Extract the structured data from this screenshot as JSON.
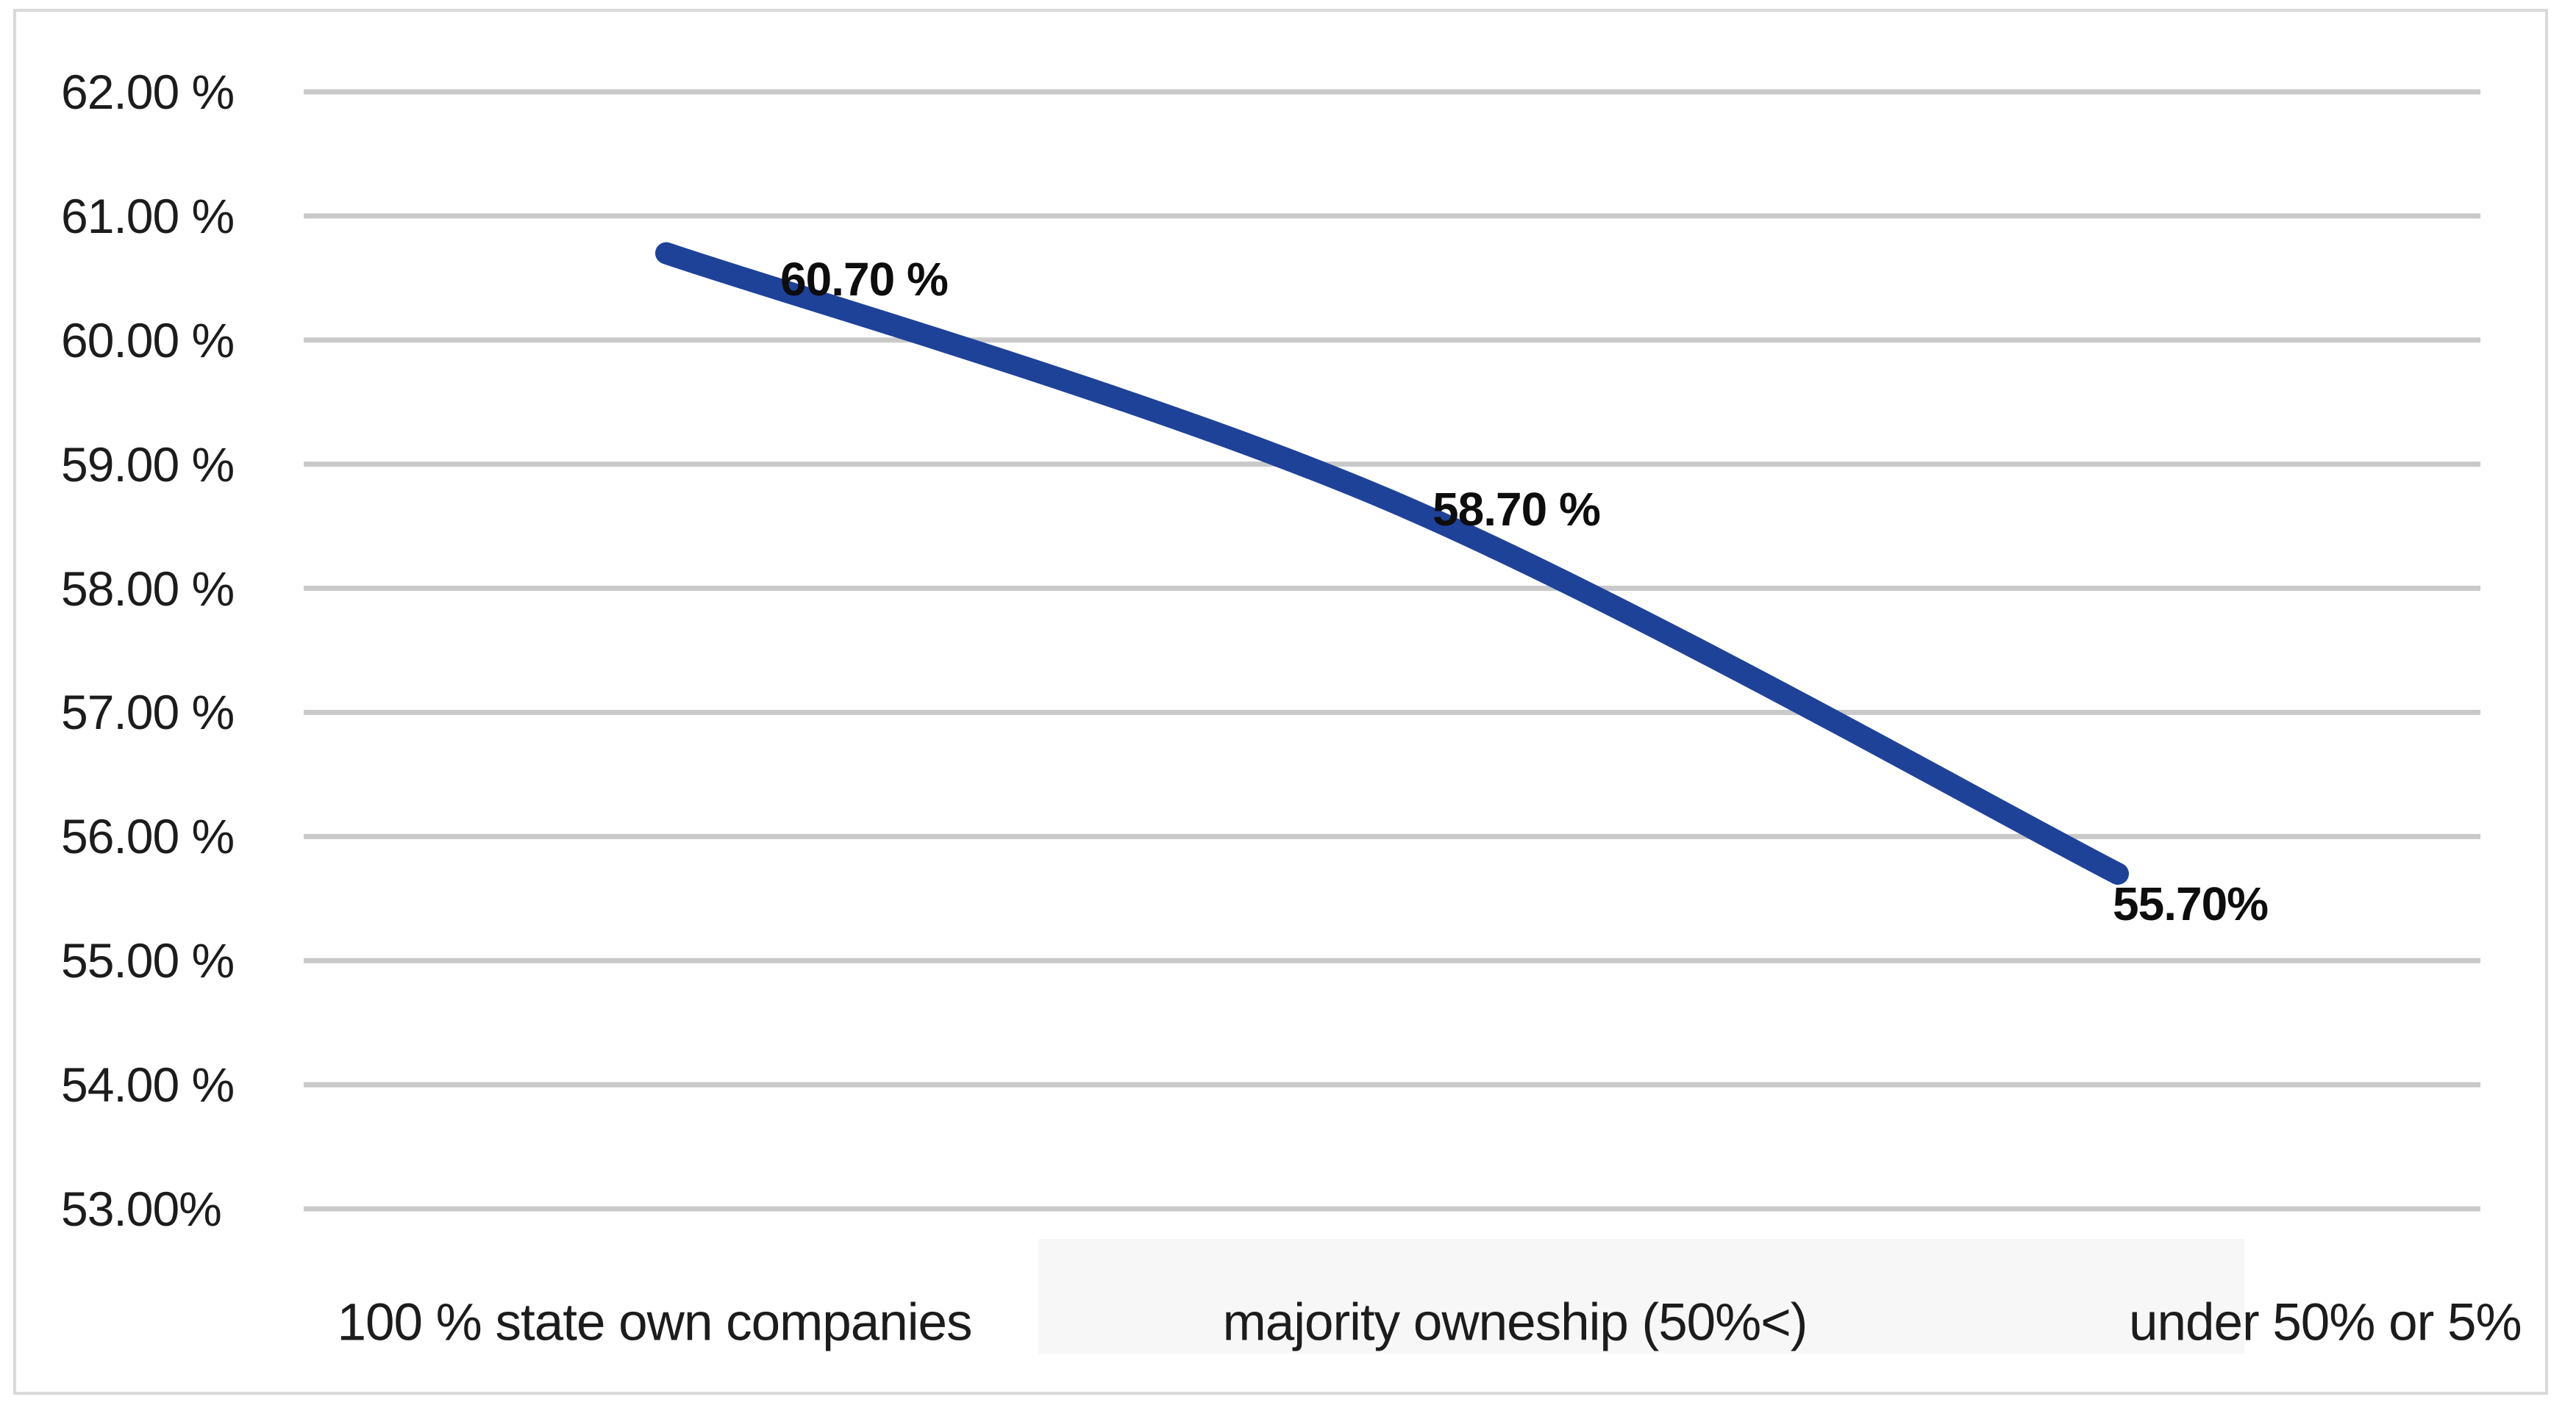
{
  "chart_data": {
    "type": "line",
    "title": "",
    "xlabel": "",
    "ylabel": "",
    "categories": [
      "100 % state own companies",
      "majority owneship (50%<)",
      "under 50% or 5%"
    ],
    "values": [
      60.7,
      58.7,
      55.7
    ],
    "data_labels": [
      "60.70 %",
      "58.70 %",
      "55.70%"
    ],
    "y_ticks": [
      {
        "value": 62,
        "label": "62.00 %"
      },
      {
        "value": 61,
        "label": "61.00 %"
      },
      {
        "value": 60,
        "label": "60.00 %"
      },
      {
        "value": 59,
        "label": "59.00 %"
      },
      {
        "value": 58,
        "label": "58.00 %"
      },
      {
        "value": 57,
        "label": "57.00 %"
      },
      {
        "value": 56,
        "label": "56.00 %"
      },
      {
        "value": 55,
        "label": "55.00 %"
      },
      {
        "value": 54,
        "label": "54.00 %"
      },
      {
        "value": 53,
        "label": "53.00%"
      }
    ],
    "ylim": [
      53,
      62
    ],
    "grid": true,
    "legend": false,
    "colors": {
      "line": "#1f4299",
      "gridline": "#c9c9c9",
      "border": "#d9d9d9",
      "text": "#1c1c1c",
      "data_label_text": "#0d0d0d",
      "highlight_band": "#f7f7f7"
    }
  }
}
